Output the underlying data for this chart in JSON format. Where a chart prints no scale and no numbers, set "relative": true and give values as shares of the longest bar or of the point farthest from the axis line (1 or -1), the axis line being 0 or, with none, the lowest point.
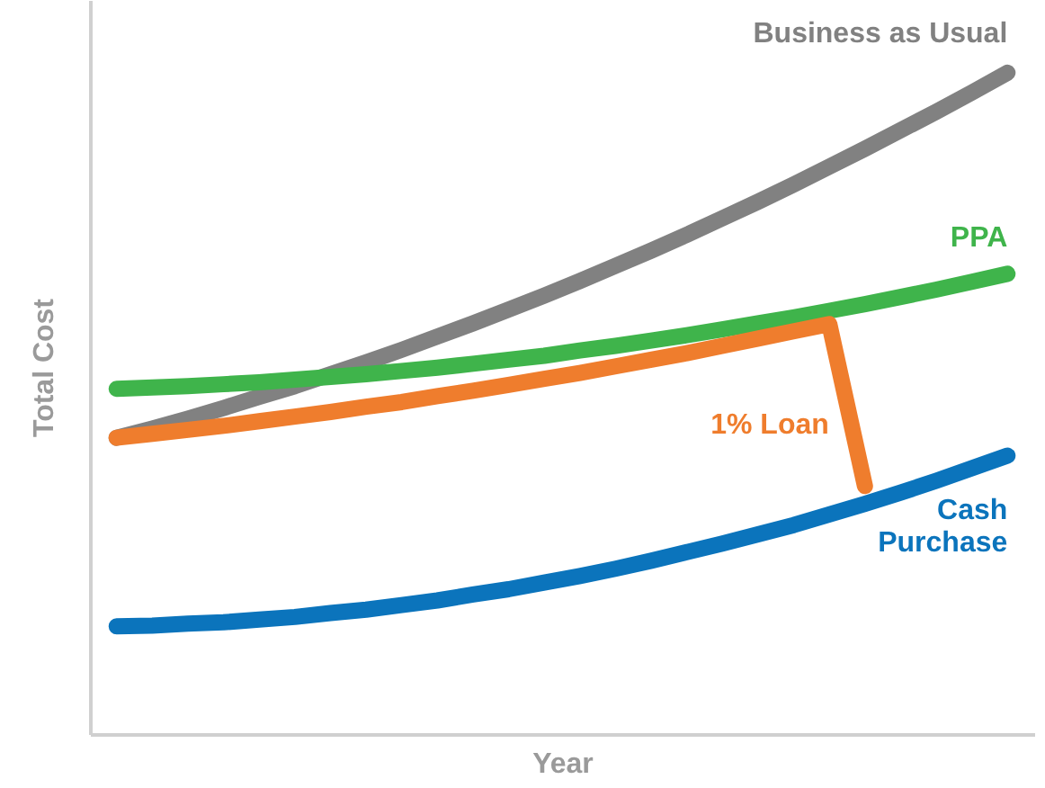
{
  "chart_data": {
    "type": "line",
    "relative": true,
    "xlabel": "Year",
    "ylabel": "Total Cost",
    "tick_labels": false,
    "grid": false,
    "line_style": "solid",
    "categories": [
      null,
      null,
      null,
      null,
      null,
      null,
      null,
      null,
      null,
      null,
      null,
      null,
      null,
      null,
      null,
      null,
      null,
      null,
      null,
      null,
      null,
      null,
      null,
      null,
      null,
      null
    ],
    "series": [
      {
        "name": "Business as Usual",
        "color": "#818181",
        "values": [
          0.448,
          0.462,
          0.477,
          0.493,
          0.51,
          0.526,
          0.544,
          0.562,
          0.581,
          0.601,
          0.621,
          0.642,
          0.663,
          0.685,
          0.708,
          0.731,
          0.755,
          0.78,
          0.805,
          0.831,
          0.858,
          0.885,
          0.913,
          0.941,
          0.97,
          1
        ]
      },
      {
        "name": "PPA",
        "color": "#3fb44b",
        "values": [
          0.522,
          0.524,
          0.526,
          0.529,
          0.532,
          0.536,
          0.54,
          0.544,
          0.549,
          0.554,
          0.56,
          0.566,
          0.572,
          0.58,
          0.587,
          0.595,
          0.603,
          0.612,
          0.621,
          0.63,
          0.64,
          0.65,
          0.661,
          0.672,
          0.684,
          0.696
        ]
      },
      {
        "name": "1% Loan",
        "color": "#ef7d2d",
        "values": [
          0.448,
          0.454,
          0.46,
          0.466,
          0.473,
          0.48,
          0.487,
          0.495,
          0.502,
          0.511,
          0.519,
          0.528,
          0.537,
          0.546,
          0.556,
          0.566,
          0.576,
          0.587,
          0.598,
          0.609,
          0.62,
          0.375,
          null,
          null,
          null,
          null
        ]
      },
      {
        "name": "Cash\nPurchase",
        "color": "#0b74bc",
        "values": [
          0.163,
          0.164,
          0.167,
          0.169,
          0.173,
          0.177,
          0.183,
          0.188,
          0.195,
          0.202,
          0.211,
          0.219,
          0.229,
          0.239,
          0.25,
          0.262,
          0.275,
          0.288,
          0.302,
          0.316,
          0.332,
          0.348,
          0.365,
          0.383,
          0.402,
          0.421
        ]
      }
    ]
  }
}
